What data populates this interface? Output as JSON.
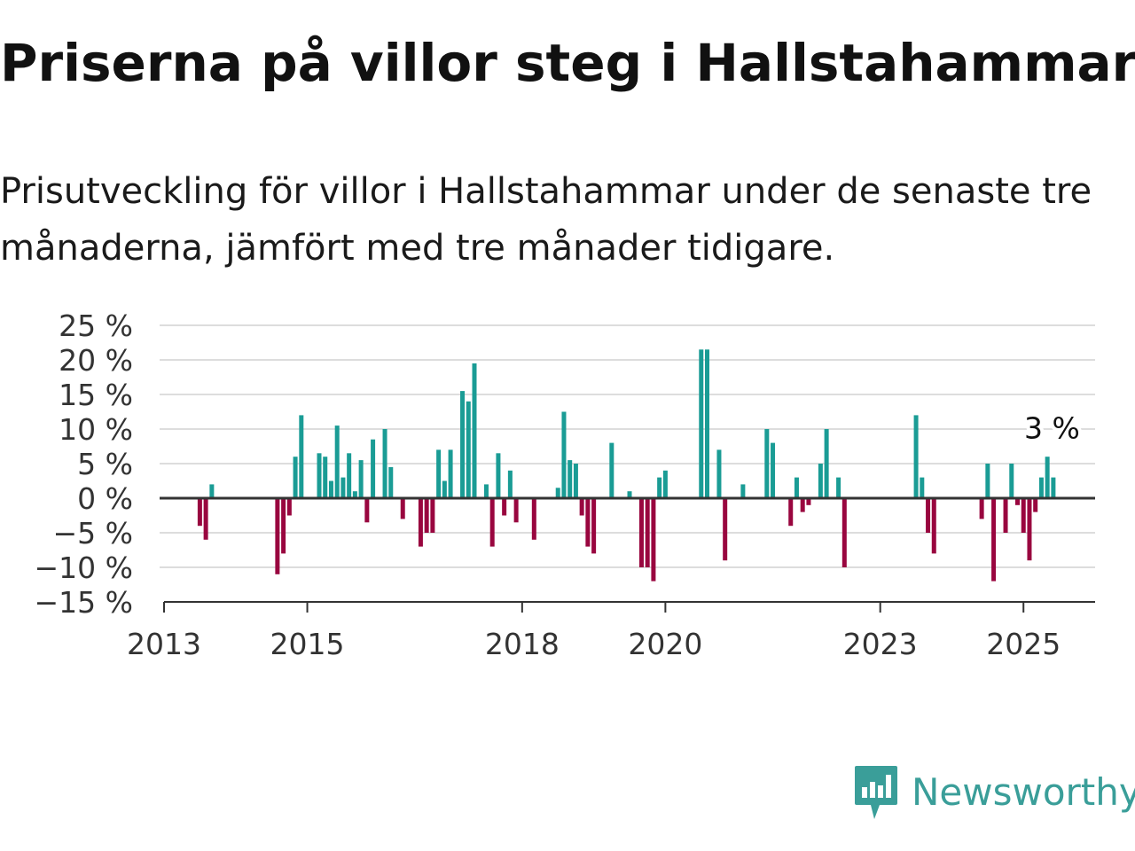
{
  "title": "Priserna på villor steg i Hallstahammar",
  "subtitle": "Prisutveckling för villor i Hallstahammar under de senaste tre månaderna, jämfört med tre månader tidigare.",
  "logo": {
    "text": "Newsworthy",
    "icon": "bar-chart-speech-bubble-icon"
  },
  "colors": {
    "positive": "#1a9c95",
    "negative": "#99063f",
    "grid": "#dddddd",
    "axis": "#333333"
  },
  "chart_data": {
    "type": "bar",
    "title": "",
    "xlabel": "",
    "ylabel": "",
    "ylim": [
      -15,
      25
    ],
    "yticks": [
      25,
      20,
      15,
      10,
      5,
      0,
      -5,
      -10,
      -15
    ],
    "ytick_labels": [
      "25 %",
      "20 %",
      "15 %",
      "10 %",
      "5 %",
      "0 %",
      "−5 %",
      "−10 %",
      "−15 %"
    ],
    "xlim": [
      "2013-01",
      "2026-01"
    ],
    "xticks": [
      {
        "date": "2013-01",
        "label": "2013"
      },
      {
        "date": "2015-01",
        "label": "2015"
      },
      {
        "date": "2018-01",
        "label": "2018"
      },
      {
        "date": "2020-01",
        "label": "2020"
      },
      {
        "date": "2023-01",
        "label": "2023"
      },
      {
        "date": "2025-01",
        "label": "2025"
      }
    ],
    "grid": true,
    "annotation": {
      "date": "2025-06",
      "text": "3 %"
    },
    "series": [
      {
        "values": [
          {
            "date": "2013-07",
            "value": -4
          },
          {
            "date": "2013-08",
            "value": -6
          },
          {
            "date": "2013-09",
            "value": 2
          },
          {
            "date": "2014-08",
            "value": -11
          },
          {
            "date": "2014-09",
            "value": -8
          },
          {
            "date": "2014-10",
            "value": -2.5
          },
          {
            "date": "2014-11",
            "value": 6
          },
          {
            "date": "2014-12",
            "value": 12
          },
          {
            "date": "2015-03",
            "value": 6.5
          },
          {
            "date": "2015-04",
            "value": 6
          },
          {
            "date": "2015-05",
            "value": 2.5
          },
          {
            "date": "2015-06",
            "value": 10.5
          },
          {
            "date": "2015-07",
            "value": 3
          },
          {
            "date": "2015-08",
            "value": 6.5
          },
          {
            "date": "2015-09",
            "value": 1
          },
          {
            "date": "2015-10",
            "value": 5.5
          },
          {
            "date": "2015-11",
            "value": -3.5
          },
          {
            "date": "2015-12",
            "value": 8.5
          },
          {
            "date": "2016-02",
            "value": 10
          },
          {
            "date": "2016-03",
            "value": 4.5
          },
          {
            "date": "2016-05",
            "value": -3
          },
          {
            "date": "2016-08",
            "value": -7
          },
          {
            "date": "2016-09",
            "value": -5
          },
          {
            "date": "2016-10",
            "value": -5
          },
          {
            "date": "2016-11",
            "value": 7
          },
          {
            "date": "2016-12",
            "value": 2.5
          },
          {
            "date": "2017-01",
            "value": 7
          },
          {
            "date": "2017-03",
            "value": 15.5
          },
          {
            "date": "2017-04",
            "value": 14
          },
          {
            "date": "2017-05",
            "value": 19.5
          },
          {
            "date": "2017-07",
            "value": 2
          },
          {
            "date": "2017-08",
            "value": -7
          },
          {
            "date": "2017-09",
            "value": 6.5
          },
          {
            "date": "2017-10",
            "value": -2.5
          },
          {
            "date": "2017-11",
            "value": 4
          },
          {
            "date": "2017-12",
            "value": -3.5
          },
          {
            "date": "2018-03",
            "value": -6
          },
          {
            "date": "2018-07",
            "value": 1.5
          },
          {
            "date": "2018-08",
            "value": 12.5
          },
          {
            "date": "2018-09",
            "value": 5.5
          },
          {
            "date": "2018-10",
            "value": 5
          },
          {
            "date": "2018-11",
            "value": -2.5
          },
          {
            "date": "2018-12",
            "value": -7
          },
          {
            "date": "2019-01",
            "value": -8
          },
          {
            "date": "2019-04",
            "value": 8
          },
          {
            "date": "2019-07",
            "value": 1
          },
          {
            "date": "2019-09",
            "value": -10
          },
          {
            "date": "2019-10",
            "value": -10
          },
          {
            "date": "2019-11",
            "value": -12
          },
          {
            "date": "2019-12",
            "value": 3
          },
          {
            "date": "2020-01",
            "value": 4
          },
          {
            "date": "2020-07",
            "value": 21.5
          },
          {
            "date": "2020-08",
            "value": 21.5
          },
          {
            "date": "2020-10",
            "value": 7
          },
          {
            "date": "2020-11",
            "value": -9
          },
          {
            "date": "2021-02",
            "value": 2
          },
          {
            "date": "2021-06",
            "value": 10
          },
          {
            "date": "2021-07",
            "value": 8
          },
          {
            "date": "2021-10",
            "value": -4
          },
          {
            "date": "2021-11",
            "value": 3
          },
          {
            "date": "2021-12",
            "value": -2
          },
          {
            "date": "2022-01",
            "value": -1
          },
          {
            "date": "2022-03",
            "value": 5
          },
          {
            "date": "2022-04",
            "value": 10
          },
          {
            "date": "2022-06",
            "value": 3
          },
          {
            "date": "2022-07",
            "value": -10
          },
          {
            "date": "2023-07",
            "value": 12
          },
          {
            "date": "2023-08",
            "value": 3
          },
          {
            "date": "2023-09",
            "value": -5
          },
          {
            "date": "2023-10",
            "value": -8
          },
          {
            "date": "2024-06",
            "value": -3
          },
          {
            "date": "2024-07",
            "value": 5
          },
          {
            "date": "2024-08",
            "value": -12
          },
          {
            "date": "2024-10",
            "value": -5
          },
          {
            "date": "2024-11",
            "value": 5
          },
          {
            "date": "2024-12",
            "value": -1
          },
          {
            "date": "2025-01",
            "value": -5
          },
          {
            "date": "2025-02",
            "value": -9
          },
          {
            "date": "2025-03",
            "value": -2
          },
          {
            "date": "2025-04",
            "value": 3
          },
          {
            "date": "2025-05",
            "value": 6
          },
          {
            "date": "2025-06",
            "value": 3
          }
        ]
      }
    ]
  }
}
